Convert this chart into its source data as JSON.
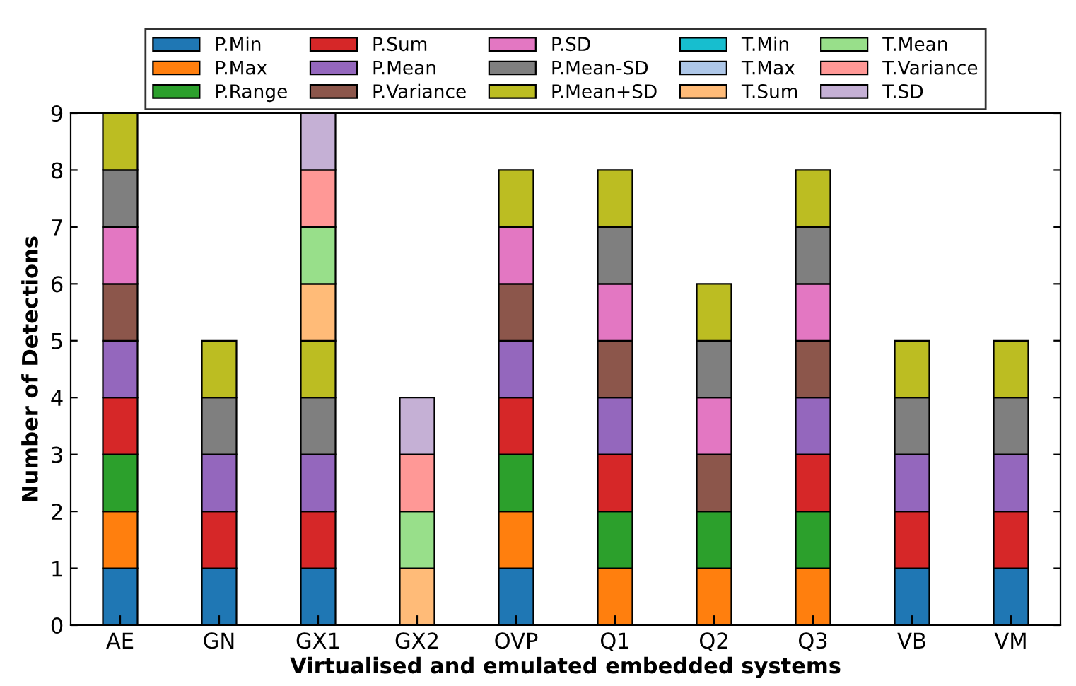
{
  "chart_data": {
    "type": "bar",
    "stacked": true,
    "xlabel": "Virtualised and emulated embedded systems",
    "ylabel": "Number of Detections",
    "categories": [
      "AE",
      "GN",
      "GX1",
      "GX2",
      "OVP",
      "Q1",
      "Q2",
      "Q3",
      "VB",
      "VM"
    ],
    "ylim": [
      0,
      9
    ],
    "yticks": [
      0,
      1,
      2,
      3,
      4,
      5,
      6,
      7,
      8,
      9
    ],
    "legend": "top",
    "grid": false,
    "series": [
      {
        "name": "P.Min",
        "color": "#1f77b4",
        "values": [
          1,
          1,
          1,
          0,
          1,
          0,
          0,
          0,
          1,
          1
        ]
      },
      {
        "name": "P.Max",
        "color": "#ff7f0e",
        "values": [
          1,
          0,
          0,
          0,
          1,
          1,
          1,
          1,
          0,
          0
        ]
      },
      {
        "name": "P.Range",
        "color": "#2ca02c",
        "values": [
          1,
          0,
          0,
          0,
          1,
          1,
          1,
          1,
          0,
          0
        ]
      },
      {
        "name": "P.Sum",
        "color": "#d62728",
        "values": [
          1,
          1,
          1,
          0,
          1,
          1,
          0,
          1,
          1,
          1
        ]
      },
      {
        "name": "P.Mean",
        "color": "#9467bd",
        "values": [
          1,
          1,
          1,
          0,
          1,
          1,
          0,
          1,
          1,
          1
        ]
      },
      {
        "name": "P.Variance",
        "color": "#8c564b",
        "values": [
          1,
          0,
          0,
          0,
          1,
          1,
          1,
          1,
          0,
          0
        ]
      },
      {
        "name": "P.SD",
        "color": "#e377c2",
        "values": [
          1,
          0,
          0,
          0,
          1,
          1,
          1,
          1,
          0,
          0
        ]
      },
      {
        "name": "P.Mean-SD",
        "color": "#7f7f7f",
        "values": [
          1,
          1,
          1,
          0,
          0,
          1,
          1,
          1,
          1,
          1
        ]
      },
      {
        "name": "P.Mean+SD",
        "color": "#bcbd22",
        "values": [
          1,
          1,
          1,
          0,
          1,
          1,
          1,
          1,
          1,
          1
        ]
      },
      {
        "name": "T.Min",
        "color": "#17becf",
        "values": [
          0,
          0,
          0,
          0,
          0,
          0,
          0,
          0,
          0,
          0
        ]
      },
      {
        "name": "T.Max",
        "color": "#aec7e8",
        "values": [
          0,
          0,
          0,
          0,
          0,
          0,
          0,
          0,
          0,
          0
        ]
      },
      {
        "name": "T.Sum",
        "color": "#ffbb78",
        "values": [
          0,
          0,
          1,
          1,
          0,
          0,
          0,
          0,
          0,
          0
        ]
      },
      {
        "name": "T.Mean",
        "color": "#98df8a",
        "values": [
          0,
          0,
          1,
          1,
          0,
          0,
          0,
          0,
          0,
          0
        ]
      },
      {
        "name": "T.Variance",
        "color": "#ff9896",
        "values": [
          0,
          0,
          1,
          1,
          0,
          0,
          0,
          0,
          0,
          0
        ]
      },
      {
        "name": "T.SD",
        "color": "#c5b0d5",
        "values": [
          0,
          0,
          1,
          1,
          0,
          0,
          0,
          0,
          0,
          0
        ]
      }
    ]
  }
}
